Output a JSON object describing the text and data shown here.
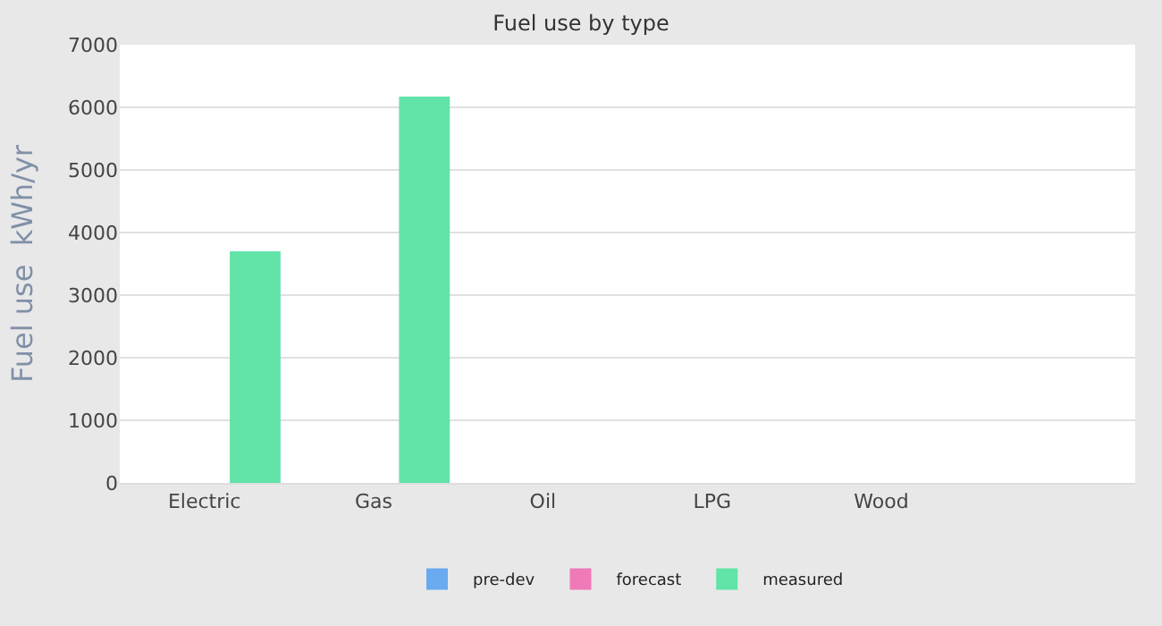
{
  "chart_data": {
    "type": "bar",
    "title": "Fuel use by type",
    "ylabel": "Fuel use  kWh/yr",
    "categories": [
      "Electric",
      "Gas",
      "Oil",
      "LPG",
      "Wood",
      null
    ],
    "series": [
      {
        "name": "pre-dev",
        "color": "#6aaaf0",
        "values": [
          null,
          null,
          null,
          null,
          null,
          null
        ]
      },
      {
        "name": "forecast",
        "color": "#f07ab8",
        "values": [
          null,
          null,
          null,
          null,
          null,
          null
        ]
      },
      {
        "name": "measured",
        "color": "#62e3a8",
        "values": [
          3700,
          6170,
          null,
          null,
          null,
          null
        ]
      }
    ],
    "ylim": [
      0,
      7000
    ],
    "yticks": [
      0,
      1000,
      2000,
      3000,
      4000,
      5000,
      6000,
      7000
    ],
    "grid": "y",
    "legend": "bottom"
  }
}
